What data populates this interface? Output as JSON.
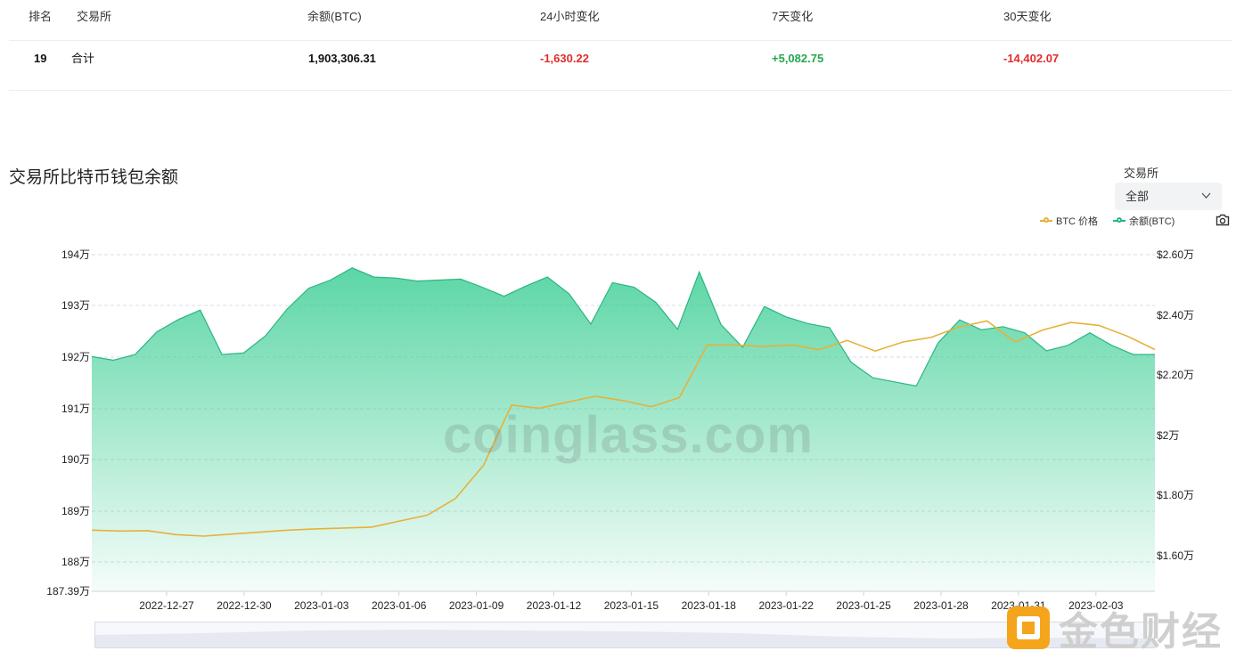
{
  "table": {
    "headers": [
      "排名",
      "交易所",
      "余额(BTC)",
      "24小时变化",
      "7天变化",
      "30天变化"
    ],
    "total_row": {
      "rank": "19",
      "exchange": "合计",
      "balance": "1,903,306.31",
      "change_24h": "-1,630.22",
      "change_7d": "+5,082.75",
      "change_30d": "-14,402.07"
    }
  },
  "title": "交易所比特币钱包余额",
  "filter": {
    "label": "交易所",
    "selected": "全部"
  },
  "legend": {
    "btc_price": "BTC 价格",
    "balance": "余额(BTC)"
  },
  "colors": {
    "btc_price": "#e6b13a",
    "balance": "#2bb585",
    "negative": "#e02d2d",
    "positive": "#25a750"
  },
  "icons": {
    "camera": "camera-icon",
    "dropdown": "chevron-down-icon"
  },
  "watermark": "coinglass.com",
  "brand": "金色财经",
  "chart_data": {
    "type": "line",
    "x_ticks": [
      "2022-12-27",
      "2022-12-30",
      "2023-01-03",
      "2023-01-06",
      "2023-01-09",
      "2023-01-12",
      "2023-01-15",
      "2023-01-18",
      "2023-01-22",
      "2023-01-25",
      "2023-01-28",
      "2023-01-31",
      "2023-02-03"
    ],
    "y_left": {
      "ticks": [
        "194万",
        "193万",
        "192万",
        "191万",
        "190万",
        "189万",
        "188万",
        "187.39万"
      ],
      "min": 1873900,
      "max": 1940000
    },
    "y_right": {
      "ticks": [
        "$2.60万",
        "$2.40万",
        "$2.20万",
        "$2万",
        "$1.80万",
        "$1.60万"
      ],
      "min": 15000,
      "max": 26000
    },
    "series": [
      {
        "name": "余额(BTC)",
        "axis": "left",
        "values": [
          1920100,
          1919400,
          1920500,
          1924900,
          1927300,
          1929100,
          1920500,
          1920800,
          1924100,
          1929300,
          1933400,
          1935000,
          1937400,
          1935600,
          1935400,
          1934800,
          1935000,
          1935200,
          1933600,
          1931800,
          1933800,
          1935600,
          1932300,
          1926400,
          1934500,
          1933600,
          1930600,
          1925400,
          1936600,
          1926300,
          1921900,
          1929800,
          1927800,
          1926500,
          1925700,
          1919000,
          1916000,
          1915200,
          1914400,
          1922700,
          1927200,
          1925300,
          1925900,
          1924700,
          1921200,
          1922300,
          1924700,
          1922300,
          1920500,
          1920500
        ]
      },
      {
        "name": "BTC 价格",
        "axis": "right",
        "values": [
          16850,
          16820,
          16830,
          16700,
          16650,
          16720,
          16780,
          16850,
          16890,
          16920,
          16950,
          17150,
          17350,
          17900,
          19000,
          21000,
          20900,
          21100,
          21300,
          21150,
          20950,
          21250,
          23000,
          23000,
          22950,
          23000,
          22850,
          23150,
          22800,
          23100,
          23250,
          23600,
          23800,
          23100,
          23500,
          23750,
          23650,
          23300,
          22850
        ]
      }
    ]
  }
}
